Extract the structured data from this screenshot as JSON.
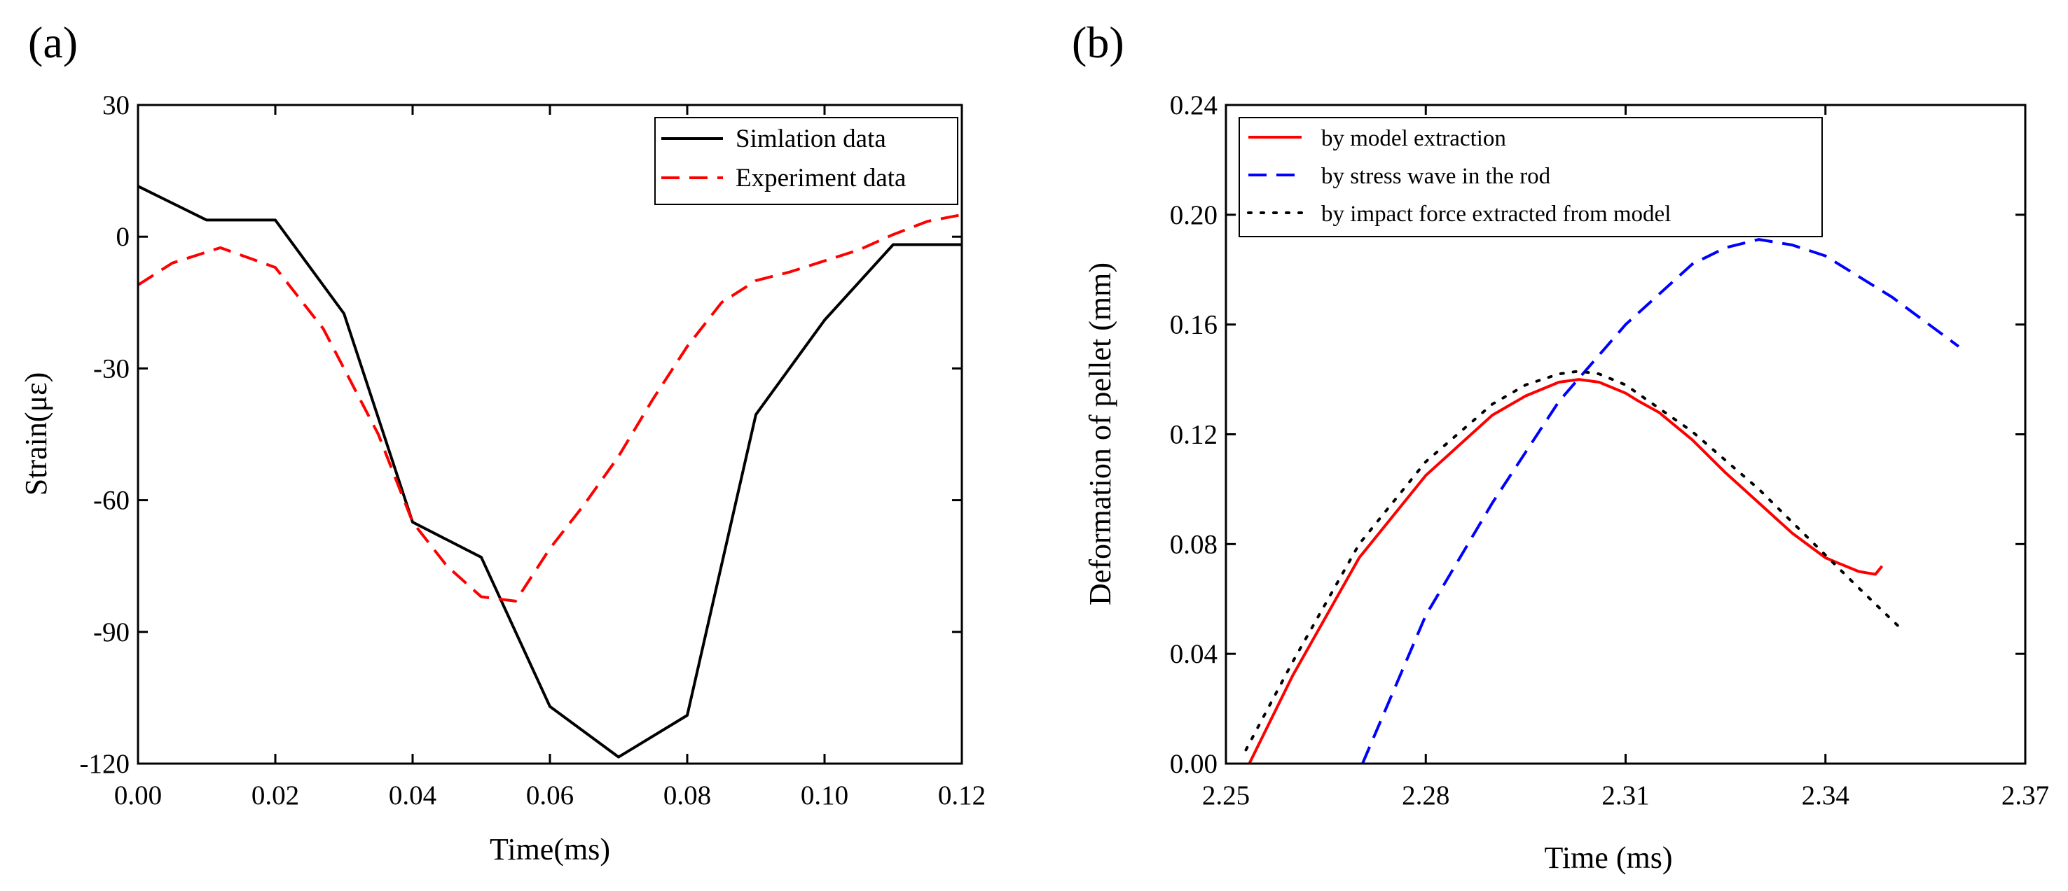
{
  "chart_data": [
    {
      "panel": "(a)",
      "type": "line",
      "title": "",
      "xlabel": "Time(ms)",
      "ylabel": "Strain(με)",
      "xlim": [
        0.0,
        0.12
      ],
      "ylim": [
        -120,
        30
      ],
      "xticks": [
        0.0,
        0.02,
        0.04,
        0.06,
        0.08,
        0.1,
        0.12
      ],
      "xtick_labels": [
        "0.00",
        "0.02",
        "0.04",
        "0.06",
        "0.08",
        "0.10",
        "0.12"
      ],
      "yticks": [
        30,
        0,
        -30,
        -60,
        -90,
        -120
      ],
      "ytick_labels": [
        "30",
        "0",
        "-30",
        "-60",
        "-90",
        "-120"
      ],
      "legend_position": "top-right",
      "series": [
        {
          "name": "Simlation data",
          "color": "#000000",
          "style": "solid",
          "x": [
            0.0,
            0.01,
            0.02,
            0.03,
            0.04,
            0.05,
            0.06,
            0.07,
            0.08,
            0.09,
            0.1,
            0.11,
            0.12
          ],
          "y": [
            11.5,
            3.8,
            3.8,
            -17.5,
            -65,
            -73,
            -107,
            -118.5,
            -109,
            -40.5,
            -19,
            -1.8,
            -1.8
          ]
        },
        {
          "name": "Experiment data",
          "color": "#ff0000",
          "style": "dashed",
          "x": [
            0.0,
            0.005,
            0.012,
            0.02,
            0.027,
            0.035,
            0.04,
            0.045,
            0.05,
            0.055,
            0.06,
            0.065,
            0.07,
            0.075,
            0.08,
            0.085,
            0.09,
            0.095,
            0.1,
            0.105,
            0.11,
            0.115,
            0.12
          ],
          "y": [
            -11,
            -6,
            -2.5,
            -7,
            -21,
            -45,
            -65,
            -75,
            -82,
            -83,
            -71,
            -61,
            -50,
            -37,
            -25,
            -15,
            -10,
            -8,
            -5.5,
            -3,
            0.5,
            3.5,
            5
          ]
        }
      ]
    },
    {
      "panel": "(b)",
      "type": "line",
      "title": "",
      "xlabel": "Time (ms)",
      "ylabel": "Deformation of pellet (mm)",
      "xlim": [
        2.25,
        2.37
      ],
      "ylim": [
        0.0,
        0.24
      ],
      "xticks": [
        2.25,
        2.28,
        2.31,
        2.34,
        2.37
      ],
      "xtick_labels": [
        "2.25",
        "2.28",
        "2.31",
        "2.34",
        "2.37"
      ],
      "yticks": [
        0.0,
        0.04,
        0.08,
        0.12,
        0.16,
        0.2,
        0.24
      ],
      "ytick_labels": [
        "0.00",
        "0.04",
        "0.08",
        "0.12",
        "0.16",
        "0.20",
        "0.24"
      ],
      "legend_position": "top-left",
      "series": [
        {
          "name": "by model extraction",
          "color": "#ff0000",
          "style": "solid",
          "x": [
            2.2535,
            2.26,
            2.27,
            2.28,
            2.29,
            2.295,
            2.3,
            2.303,
            2.306,
            2.31,
            2.312,
            2.315,
            2.32,
            2.325,
            2.33,
            2.335,
            2.34,
            2.342,
            2.345,
            2.3475,
            2.3485
          ],
          "y": [
            0.0,
            0.032,
            0.075,
            0.105,
            0.127,
            0.134,
            0.139,
            0.14,
            0.139,
            0.135,
            0.132,
            0.128,
            0.118,
            0.106,
            0.095,
            0.084,
            0.075,
            0.073,
            0.07,
            0.069,
            0.072
          ]
        },
        {
          "name": "by stress wave in the rod",
          "color": "#0000ff",
          "style": "dashed",
          "x": [
            2.2705,
            2.28,
            2.29,
            2.3,
            2.31,
            2.32,
            2.325,
            2.33,
            2.335,
            2.34,
            2.35,
            2.36
          ],
          "y": [
            0.0,
            0.054,
            0.095,
            0.132,
            0.16,
            0.182,
            0.188,
            0.191,
            0.189,
            0.185,
            0.17,
            0.152
          ]
        },
        {
          "name": "by impact force extracted from model",
          "color": "#000000",
          "style": "dotted",
          "x": [
            2.253,
            2.26,
            2.27,
            2.28,
            2.29,
            2.295,
            2.3,
            2.303,
            2.306,
            2.31,
            2.32,
            2.33,
            2.34,
            2.345,
            2.351
          ],
          "y": [
            0.005,
            0.037,
            0.08,
            0.11,
            0.131,
            0.138,
            0.142,
            0.143,
            0.142,
            0.138,
            0.121,
            0.1,
            0.076,
            0.064,
            0.05
          ]
        }
      ]
    }
  ]
}
